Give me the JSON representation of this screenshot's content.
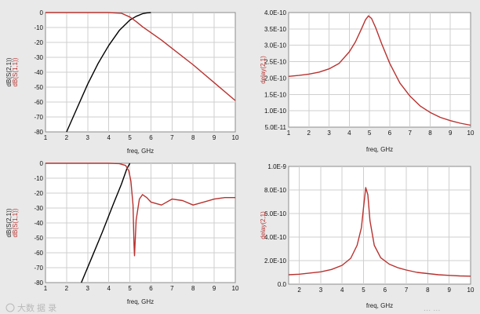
{
  "chart_data": [
    {
      "type": "line",
      "xlabel": "freq, GHz",
      "ylabel_lines": [
        "dB(S(2,1))",
        "dB(S(1,1))"
      ],
      "xlim": [
        1,
        10
      ],
      "ylim": [
        -80,
        0
      ],
      "xticks": [
        "1",
        "2",
        "3",
        "4",
        "5",
        "6",
        "7",
        "8",
        "9",
        "10"
      ],
      "yticks": [
        "0",
        "-10",
        "-20",
        "-30",
        "-40",
        "-50",
        "-60",
        "-70",
        "-80"
      ],
      "series": [
        {
          "color": "#000000",
          "x": [
            2.0,
            2.5,
            3.0,
            3.5,
            4.0,
            4.5,
            5.0,
            5.3,
            5.6,
            5.8,
            6.0
          ],
          "y": [
            -80,
            -64,
            -48,
            -34,
            -22,
            -12,
            -5,
            -2.5,
            -0.8,
            -0.2,
            0
          ]
        },
        {
          "color": "#b8322f",
          "x": [
            1,
            2,
            3,
            4,
            4.6,
            5.0,
            5.3,
            5.6,
            6,
            6.5,
            7,
            8,
            9,
            10
          ],
          "y": [
            0,
            0,
            0,
            0,
            -0.5,
            -3,
            -6,
            -9.5,
            -13.5,
            -18.5,
            -24,
            -35,
            -47,
            -59
          ]
        }
      ]
    },
    {
      "type": "line",
      "xlabel": "freq, GHz",
      "ylabel": "delay(2,1)",
      "xlim": [
        1,
        10
      ],
      "ylim": [
        5e-11,
        4e-10
      ],
      "xticks": [
        "1",
        "2",
        "3",
        "4",
        "5",
        "6",
        "7",
        "8",
        "9",
        "10"
      ],
      "yticks": [
        "4.0E-10",
        "3.5E-10",
        "3.0E-10",
        "2.5E-10",
        "2.0E-10",
        "1.5E-10",
        "1.0E-10",
        "5.0E-11"
      ],
      "series": [
        {
          "color": "#b8322f",
          "x": [
            1,
            1.5,
            2,
            2.5,
            3,
            3.5,
            4,
            4.3,
            4.6,
            4.8,
            4.95,
            5.1,
            5.3,
            5.6,
            6,
            6.5,
            7,
            7.5,
            8,
            8.5,
            9,
            9.5,
            10
          ],
          "y": [
            2.05e-10,
            2.08e-10,
            2.12e-10,
            2.18e-10,
            2.28e-10,
            2.45e-10,
            2.8e-10,
            3.1e-10,
            3.5e-10,
            3.78e-10,
            3.9e-10,
            3.82e-10,
            3.55e-10,
            3.05e-10,
            2.45e-10,
            1.85e-10,
            1.45e-10,
            1.15e-10,
            9.5e-11,
            8e-11,
            7e-11,
            6.2e-11,
            5.6e-11
          ]
        }
      ]
    },
    {
      "type": "line",
      "xlabel": "freq, GHz",
      "ylabel_lines": [
        "dB(S(2,1))",
        "dB(S(1,1))"
      ],
      "xlim": [
        1,
        10
      ],
      "ylim": [
        -80,
        0
      ],
      "xticks": [
        "1",
        "2",
        "3",
        "4",
        "5",
        "6",
        "7",
        "8",
        "9",
        "10"
      ],
      "yticks": [
        "0",
        "-10",
        "-20",
        "-30",
        "-40",
        "-50",
        "-60",
        "-70",
        "-80"
      ],
      "series": [
        {
          "color": "#000000",
          "x": [
            2.7,
            3.2,
            3.7,
            4.2,
            4.6,
            4.85,
            5.0
          ],
          "y": [
            -80,
            -63,
            -46,
            -28,
            -14,
            -4,
            0
          ]
        },
        {
          "color": "#b8322f",
          "x": [
            1,
            2,
            3,
            4,
            4.5,
            4.8,
            4.95,
            5.05,
            5.15,
            5.2,
            5.22,
            5.3,
            5.45,
            5.6,
            5.8,
            6,
            6.5,
            7,
            7.5,
            8,
            8.5,
            9,
            9.5,
            10
          ],
          "y": [
            0,
            0,
            0,
            0,
            -0.2,
            -1.5,
            -5,
            -12,
            -28,
            -55,
            -62,
            -38,
            -24,
            -21,
            -23,
            -26,
            -28,
            -24,
            -25,
            -28,
            -26,
            -24,
            -23,
            -23
          ]
        }
      ]
    },
    {
      "type": "line",
      "xlabel": "freq, GHz",
      "ylabel": "delay(2,1)",
      "xlim": [
        1.5,
        10
      ],
      "ylim": [
        0,
        1e-09
      ],
      "xticks": [
        "2",
        "3",
        "4",
        "5",
        "6",
        "7",
        "8",
        "9",
        "10"
      ],
      "xtick_values": [
        2,
        3,
        4,
        5,
        6,
        7,
        8,
        9,
        10
      ],
      "yticks": [
        "1.0E-9",
        "8.0E-10",
        "6.0E-10",
        "4.0E-10",
        "2.0E-10",
        "0.0"
      ],
      "series": [
        {
          "color": "#b8322f",
          "x": [
            1.5,
            2,
            2.5,
            3,
            3.5,
            4,
            4.4,
            4.7,
            4.9,
            5.0,
            5.1,
            5.2,
            5.3,
            5.5,
            5.8,
            6.2,
            6.6,
            7,
            7.5,
            8,
            8.5,
            9,
            9.5,
            10
          ],
          "y": [
            8e-11,
            8.5e-11,
            9.5e-11,
            1.05e-10,
            1.25e-10,
            1.6e-10,
            2.2e-10,
            3.3e-10,
            4.8e-10,
            6.5e-10,
            8.2e-10,
            7.6e-10,
            5.4e-10,
            3.3e-10,
            2.25e-10,
            1.7e-10,
            1.4e-10,
            1.2e-10,
            1e-10,
            9e-11,
            8e-11,
            7.5e-11,
            7e-11,
            6.8e-11
          ]
        }
      ]
    }
  ],
  "watermark": "大数 据 录",
  "watermark_right": "... ..."
}
